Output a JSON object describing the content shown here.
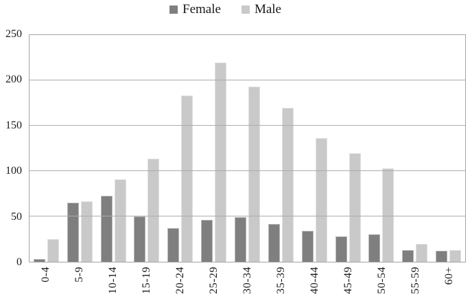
{
  "chart_data": {
    "type": "bar",
    "title": "",
    "categories": [
      "0-4",
      "5-9",
      "10-14",
      "15-19",
      "20-24",
      "25-29",
      "30-34",
      "35-39",
      "40-44",
      "45-49",
      "50-54",
      "55-59",
      "60+"
    ],
    "series": [
      {
        "name": "Female",
        "color": "#7f7f7f",
        "values": [
          3,
          65,
          73,
          50,
          37,
          46,
          49,
          42,
          34,
          28,
          30,
          13,
          12
        ]
      },
      {
        "name": "Male",
        "color": "#c9c9c9",
        "values": [
          25,
          67,
          91,
          114,
          183,
          220,
          193,
          170,
          136,
          120,
          103,
          20,
          13
        ]
      }
    ],
    "xlabel": "",
    "ylabel": "",
    "ylim": [
      0,
      250
    ],
    "yticks": [
      0,
      50,
      100,
      150,
      200,
      250
    ],
    "grid": true,
    "legend_position": "top-center",
    "colors": {
      "axis_border": "#a3a3a3",
      "gridline": "#acacac",
      "text": "#1a1a1a",
      "background": "#ffffff"
    }
  }
}
